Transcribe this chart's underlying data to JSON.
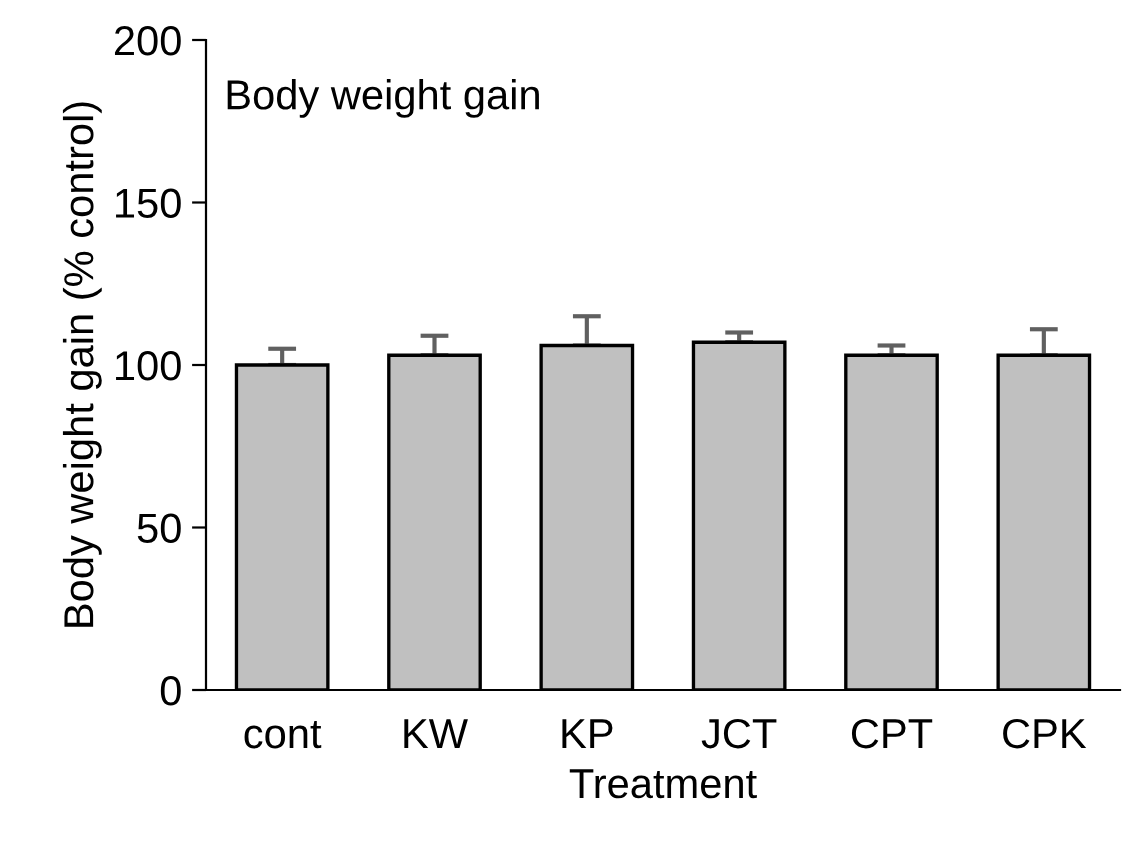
{
  "chart_data": {
    "type": "bar",
    "title": "Body weight gain",
    "xlabel": "Treatment",
    "ylabel": "Body weight gain (% control)",
    "categories": [
      "cont",
      "KW",
      "KP",
      "JCT",
      "CPT",
      "CPK"
    ],
    "values": [
      100,
      103,
      106,
      107,
      103,
      103
    ],
    "errors": [
      [
        100,
        105
      ],
      [
        103,
        109
      ],
      [
        106,
        115
      ],
      [
        107,
        110
      ],
      [
        103,
        106
      ],
      [
        103,
        111
      ]
    ],
    "color": "#c0c0c0",
    "ylim": [
      0,
      200
    ],
    "yticks": [
      0,
      50,
      100,
      150,
      200
    ],
    "grid": false,
    "legend": false
  }
}
